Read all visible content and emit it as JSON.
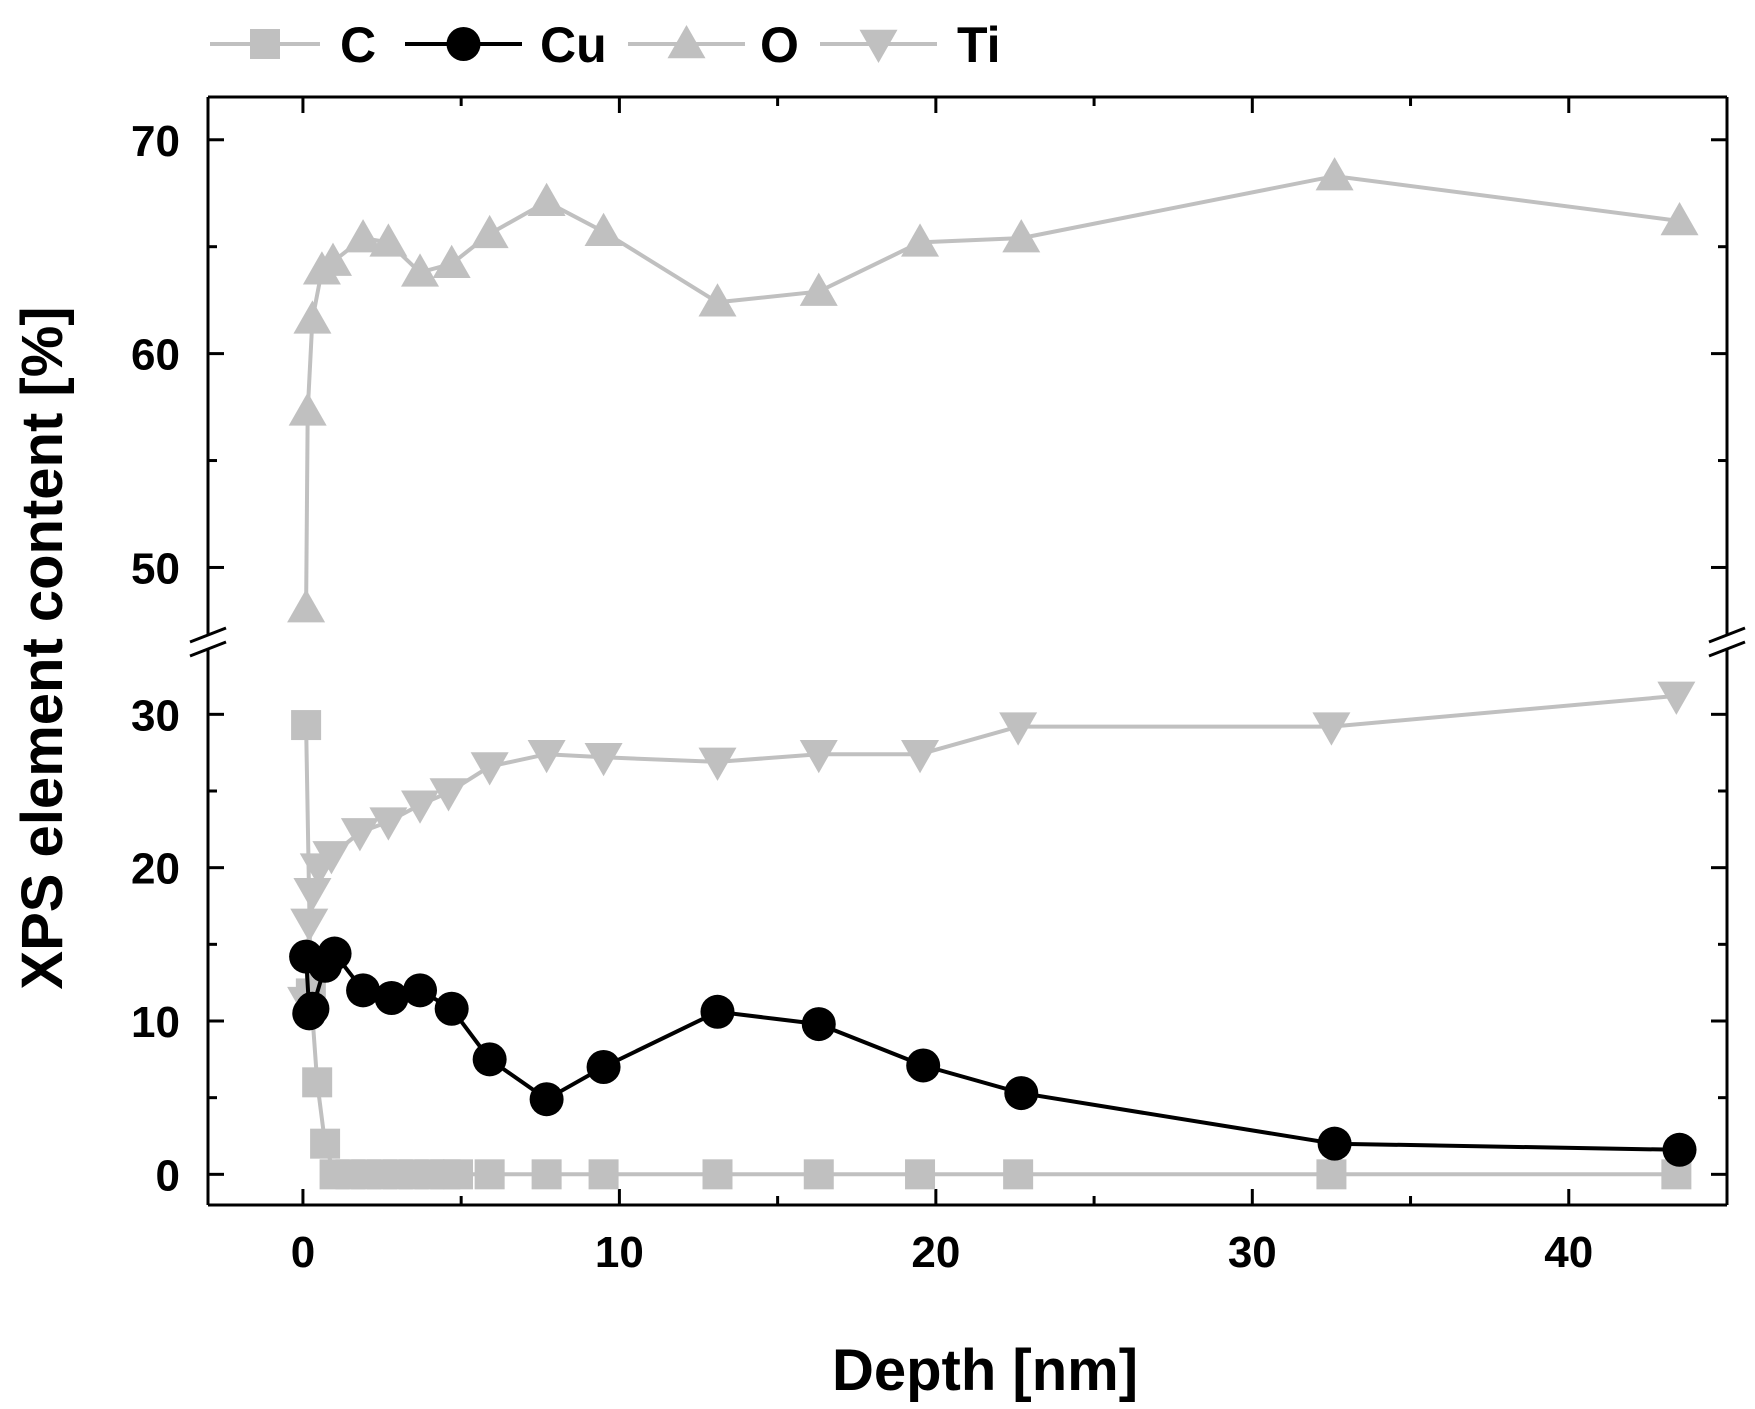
{
  "chart_data": {
    "type": "line",
    "title": "",
    "xlabel": "Depth [nm]",
    "ylabel": "XPS element content [%]",
    "xlim": [
      -3,
      45
    ],
    "x_ticks": [
      0,
      10,
      20,
      30,
      40
    ],
    "y_axis_break": {
      "lower_range": [
        -2,
        34
      ],
      "upper_range": [
        46,
        72
      ],
      "lower_ticks": [
        0,
        10,
        20,
        30
      ],
      "upper_ticks": [
        50,
        60,
        70
      ]
    },
    "grid": false,
    "legend_position": "top",
    "series": [
      {
        "name": "C",
        "marker": "square",
        "color": "#c0c0c0",
        "x": [
          0.1,
          0.25,
          0.45,
          0.7,
          1.0,
          1.5,
          2.0,
          2.5,
          3.0,
          3.5,
          4.0,
          4.5,
          4.9,
          5.9,
          7.7,
          9.5,
          13.1,
          16.3,
          19.5,
          22.6,
          32.5,
          43.4
        ],
        "y": [
          29.3,
          11.8,
          6.0,
          2.0,
          0.0,
          0.0,
          0.0,
          0.0,
          0.0,
          0.0,
          0.0,
          0.0,
          0.0,
          0.0,
          0.0,
          0.0,
          0.0,
          0.0,
          0.0,
          0.0,
          0.0,
          0.0
        ]
      },
      {
        "name": "Cu",
        "marker": "circle",
        "color": "#000000",
        "x": [
          0.1,
          0.2,
          0.3,
          0.7,
          1.0,
          1.9,
          2.8,
          3.7,
          4.7,
          5.9,
          7.7,
          9.5,
          13.1,
          16.3,
          19.6,
          22.7,
          32.6,
          43.5
        ],
        "y": [
          14.2,
          10.5,
          10.8,
          13.6,
          14.4,
          12.0,
          11.5,
          12.0,
          10.8,
          7.5,
          4.9,
          7.0,
          10.6,
          9.8,
          7.1,
          5.3,
          2.0,
          1.6
        ]
      },
      {
        "name": "O",
        "marker": "triangle-up",
        "color": "#c0c0c0",
        "x": [
          0.1,
          0.15,
          0.3,
          0.6,
          0.95,
          1.9,
          2.7,
          3.7,
          4.7,
          5.9,
          7.7,
          9.5,
          13.1,
          16.3,
          19.5,
          22.7,
          32.6,
          43.5
        ],
        "y": [
          48.1,
          57.3,
          61.6,
          63.9,
          64.3,
          65.4,
          65.2,
          63.8,
          64.2,
          65.6,
          67.1,
          65.7,
          62.4,
          62.9,
          65.2,
          65.4,
          68.3,
          66.2
        ]
      },
      {
        "name": "Ti",
        "marker": "triangle-down",
        "color": "#c0c0c0",
        "x": [
          0.1,
          0.2,
          0.3,
          0.5,
          0.9,
          1.8,
          2.7,
          3.7,
          4.6,
          5.9,
          7.7,
          9.5,
          13.1,
          16.3,
          19.5,
          22.6,
          32.5,
          43.4
        ],
        "y": [
          11.3,
          16.4,
          18.4,
          20.0,
          20.8,
          22.3,
          23.0,
          24.1,
          24.9,
          26.6,
          27.4,
          27.2,
          26.9,
          27.4,
          27.4,
          29.2,
          29.2,
          31.2
        ]
      }
    ]
  }
}
